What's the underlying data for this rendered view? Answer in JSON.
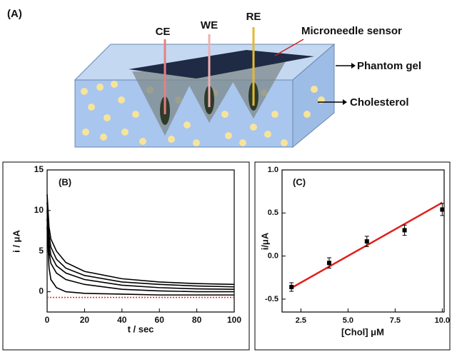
{
  "diagram": {
    "label": "(A)",
    "electrodes": [
      "CE",
      "WE",
      "RE"
    ],
    "annotations": [
      "Microneedle sensor",
      "Phantom gel",
      "Cholesterol"
    ]
  },
  "chart_data": [
    {
      "type": "line",
      "label": "(B)",
      "x_label": "t / sec",
      "y_label": "i / μA",
      "x": [
        0,
        1,
        2,
        5,
        10,
        20,
        40,
        60,
        80,
        100
      ],
      "series": [
        {
          "color": "#000000",
          "values": [
            12,
            8,
            6.5,
            5,
            3.6,
            2.5,
            1.6,
            1.2,
            1.0,
            0.9
          ]
        },
        {
          "color": "#000000",
          "values": [
            11,
            7,
            5.5,
            4,
            2.9,
            2.0,
            1.2,
            0.9,
            0.7,
            0.6
          ]
        },
        {
          "color": "#000000",
          "values": [
            10,
            6,
            4.5,
            3.2,
            2.3,
            1.5,
            0.8,
            0.5,
            0.35,
            0.3
          ]
        },
        {
          "color": "#000000",
          "values": [
            9,
            5,
            3.5,
            2.3,
            1.5,
            0.9,
            0.3,
            0.1,
            0.0,
            0.0
          ]
        },
        {
          "color": "#000000",
          "values": [
            8,
            3,
            1.5,
            0.5,
            0.0,
            -0.2,
            -0.3,
            -0.4,
            -0.4,
            -0.4
          ]
        },
        {
          "color": "#d9342b",
          "linestyle": "dotted",
          "values": [
            -0.7,
            -0.7,
            -0.7,
            -0.7,
            -0.7,
            -0.7,
            -0.7,
            -0.7,
            -0.7,
            -0.7
          ]
        }
      ],
      "xlim": [
        0,
        100
      ],
      "xticks": [
        0,
        20,
        40,
        60,
        80,
        100
      ],
      "ylim": [
        -2.5,
        15
      ],
      "yticks": [
        0,
        5,
        10,
        15
      ]
    },
    {
      "type": "scatter",
      "label": "(C)",
      "x_label": "[Chol] μM",
      "y_label": "i/μA",
      "x": [
        2,
        4,
        6,
        8,
        10
      ],
      "values": [
        -0.36,
        -0.08,
        0.17,
        0.3,
        0.54
      ],
      "errors": [
        0.05,
        0.06,
        0.06,
        0.06,
        0.07
      ],
      "color": "#000000",
      "fit": {
        "x": [
          2,
          10
        ],
        "values": [
          -0.37,
          0.62
        ],
        "color": "#e0201b"
      },
      "xlim": [
        1.5,
        10.1
      ],
      "xticks": [
        {
          "value": 2.5,
          "label": "2.5"
        },
        {
          "value": 5,
          "label": "5.0"
        },
        {
          "value": 7.5,
          "label": "7.5"
        },
        {
          "value": 10,
          "label": "10.0"
        }
      ],
      "ylim": [
        -0.65,
        1.0
      ],
      "yticks": [
        {
          "value": -0.5,
          "label": "-0.5"
        },
        {
          "value": 0,
          "label": "0.0"
        },
        {
          "value": 0.5,
          "label": "0.5"
        },
        {
          "value": 1,
          "label": "1.0"
        }
      ]
    }
  ]
}
